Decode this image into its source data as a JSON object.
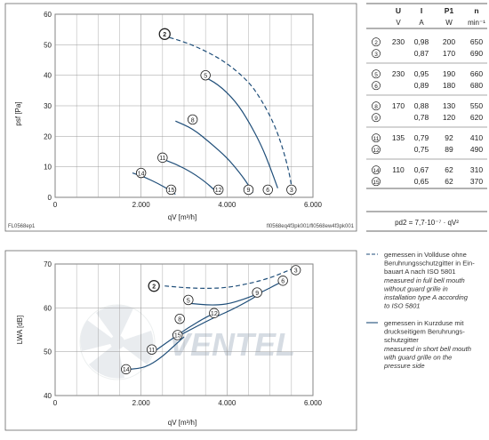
{
  "watermark": "VENTEL",
  "colors": {
    "curve": "#1f4e79",
    "dashed": "#1f4e79",
    "frame": "#555555",
    "grid": "#999999",
    "marker_fill": "#ffffff",
    "text": "#222222"
  },
  "chart_data": [
    {
      "type": "line",
      "ylabel": "psf [Pa]",
      "xlabel": "qV [m³/h]",
      "xlim": [
        0,
        6000
      ],
      "ylim": [
        0,
        60
      ],
      "x_ticks": [
        "0",
        "2.000",
        "4.000",
        "6.000"
      ],
      "y_ticks": [
        "0",
        "10",
        "20",
        "30",
        "40",
        "50",
        "60"
      ],
      "footer_left": "FL0568ep1",
      "footer_right": "fl0568eq4f3pk001/fl0568ew4f3pk001",
      "series": [
        {
          "id": "2",
          "dashed": true,
          "points": [
            [
              2500,
              53
            ],
            [
              3000,
              51
            ],
            [
              3500,
              48
            ],
            [
              4000,
              44
            ],
            [
              4500,
              38
            ],
            [
              4800,
              32
            ],
            [
              5100,
              24
            ],
            [
              5300,
              16
            ],
            [
              5450,
              8
            ],
            [
              5520,
              2
            ]
          ]
        },
        {
          "id": "5",
          "dashed": false,
          "points": [
            [
              3400,
              40
            ],
            [
              3800,
              37
            ],
            [
              4200,
              31.5
            ],
            [
              4500,
              25
            ],
            [
              4800,
              17
            ],
            [
              5000,
              10
            ],
            [
              5180,
              3
            ]
          ]
        },
        {
          "id": "8",
          "dashed": false,
          "points": [
            [
              2800,
              25
            ],
            [
              3200,
              22.5
            ],
            [
              3600,
              18
            ],
            [
              4000,
              13
            ],
            [
              4300,
              8
            ],
            [
              4500,
              4
            ],
            [
              4600,
              1.5
            ]
          ]
        },
        {
          "id": "11",
          "dashed": false,
          "points": [
            [
              2400,
              13
            ],
            [
              2800,
              11
            ],
            [
              3200,
              8
            ],
            [
              3500,
              5
            ],
            [
              3700,
              2.5
            ],
            [
              3800,
              1
            ]
          ]
        },
        {
          "id": "14",
          "dashed": false,
          "points": [
            [
              1800,
              8
            ],
            [
              2100,
              6.5
            ],
            [
              2400,
              4.5
            ],
            [
              2650,
              2.5
            ],
            [
              2800,
              1
            ]
          ]
        }
      ],
      "markers": [
        {
          "id": "2",
          "x": 2550,
          "y": 53.5
        },
        {
          "id": "5",
          "x": 3500,
          "y": 40
        },
        {
          "id": "8",
          "x": 3200,
          "y": 25.5
        },
        {
          "id": "11",
          "x": 2500,
          "y": 13
        },
        {
          "id": "14",
          "x": 2000,
          "y": 8
        },
        {
          "id": "15",
          "x": 2700,
          "y": 2.5
        },
        {
          "id": "12",
          "x": 3800,
          "y": 2.5
        },
        {
          "id": "9",
          "x": 4500,
          "y": 2.5
        },
        {
          "id": "6",
          "x": 4950,
          "y": 2.5
        },
        {
          "id": "3",
          "x": 5500,
          "y": 2.5
        }
      ]
    },
    {
      "type": "line",
      "ylabel": "LWA [dB]",
      "xlabel": "qV [m³/h]",
      "xlim": [
        0,
        6000
      ],
      "ylim": [
        40,
        70
      ],
      "x_ticks": [
        "0",
        "2.000",
        "4.000",
        "6.000"
      ],
      "y_ticks": [
        "40",
        "50",
        "60",
        "70"
      ],
      "series": [
        {
          "id": "2",
          "dashed": true,
          "points": [
            [
              2550,
              65
            ],
            [
              3000,
              64.6
            ],
            [
              3500,
              64.4
            ],
            [
              4000,
              64.6
            ],
            [
              4500,
              65.5
            ],
            [
              5000,
              66.8
            ],
            [
              5500,
              68.8
            ]
          ]
        },
        {
          "id": "5",
          "dashed": false,
          "points": [
            [
              3150,
              61
            ],
            [
              3600,
              60.6
            ],
            [
              4000,
              60.8
            ],
            [
              4400,
              62
            ],
            [
              4800,
              63.5
            ],
            [
              5200,
              65.6
            ],
            [
              5400,
              66.4
            ]
          ]
        },
        {
          "id": "8",
          "dashed": false,
          "points": [
            [
              2950,
              54
            ],
            [
              3300,
              55.8
            ],
            [
              3700,
              57.8
            ],
            [
              4100,
              59.5
            ],
            [
              4500,
              61.6
            ],
            [
              4700,
              62.8
            ]
          ]
        },
        {
          "id": "11",
          "dashed": false,
          "points": [
            [
              2300,
              50
            ],
            [
              2700,
              52.8
            ],
            [
              3100,
              55.5
            ],
            [
              3500,
              57.8
            ],
            [
              3650,
              58.5
            ]
          ]
        },
        {
          "id": "14",
          "dashed": false,
          "points": [
            [
              1750,
              46
            ],
            [
              2100,
              46.4
            ],
            [
              2450,
              48.5
            ],
            [
              2800,
              51.6
            ],
            [
              3000,
              53.4
            ]
          ]
        }
      ],
      "markers": [
        {
          "id": "2",
          "x": 2300,
          "y": 65
        },
        {
          "id": "5",
          "x": 3100,
          "y": 61.8
        },
        {
          "id": "8",
          "x": 2900,
          "y": 57.5
        },
        {
          "id": "11",
          "x": 2250,
          "y": 50.5
        },
        {
          "id": "14",
          "x": 1650,
          "y": 46
        },
        {
          "id": "15",
          "x": 2850,
          "y": 53.8
        },
        {
          "id": "12",
          "x": 3700,
          "y": 58.8
        },
        {
          "id": "9",
          "x": 4700,
          "y": 63.5
        },
        {
          "id": "6",
          "x": 5300,
          "y": 66.2
        },
        {
          "id": "3",
          "x": 5600,
          "y": 68.6
        }
      ]
    }
  ],
  "table": {
    "headers": [
      "U",
      "I",
      "P1",
      "n"
    ],
    "units": [
      "V",
      "A",
      "W",
      "min⁻¹"
    ],
    "groups": [
      {
        "rows": [
          {
            "id": "2",
            "U": "230",
            "I": "0,98",
            "P": "200",
            "n": "650"
          },
          {
            "id": "3",
            "U": "",
            "I": "0,87",
            "P": "170",
            "n": "690"
          }
        ]
      },
      {
        "rows": [
          {
            "id": "5",
            "U": "230",
            "I": "0,95",
            "P": "190",
            "n": "660"
          },
          {
            "id": "6",
            "U": "",
            "I": "0,89",
            "P": "180",
            "n": "680"
          }
        ]
      },
      {
        "rows": [
          {
            "id": "8",
            "U": "170",
            "I": "0,88",
            "P": "130",
            "n": "550"
          },
          {
            "id": "9",
            "U": "",
            "I": "0,78",
            "P": "120",
            "n": "620"
          }
        ]
      },
      {
        "rows": [
          {
            "id": "11",
            "U": "135",
            "I": "0,79",
            "P": "92",
            "n": "410"
          },
          {
            "id": "12",
            "U": "",
            "I": "0,75",
            "P": "89",
            "n": "490"
          }
        ]
      },
      {
        "rows": [
          {
            "id": "14",
            "U": "110",
            "I": "0,67",
            "P": "62",
            "n": "310"
          },
          {
            "id": "15",
            "U": "",
            "I": "0,65",
            "P": "62",
            "n": "370"
          }
        ]
      }
    ],
    "formula": "pd2 = 7,7·10⁻⁷ · qV²"
  },
  "legend": {
    "dashed": {
      "de": [
        "gemessen in Vollduse ohne",
        "Beruhrungsschutzgitter in Ein-",
        "bauart A nach ISO 5801"
      ],
      "en": [
        "measured in full bell mouth",
        "without guard grille in",
        "installation type A according",
        "to ISO 5801"
      ]
    },
    "solid": {
      "de": [
        "gemessen in Kurzduse mit",
        "druckseitigem Beruhrungs-",
        "schutzgitter"
      ],
      "en": [
        "measured in short bell mouth",
        "with guard grille on the",
        "pressure side"
      ]
    }
  }
}
